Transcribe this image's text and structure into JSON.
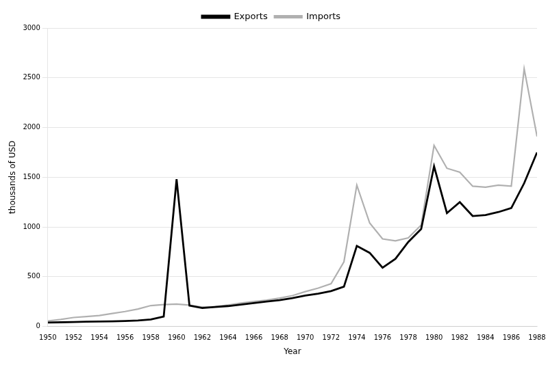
{
  "chart_data": {
    "type": "line",
    "x": [
      1950,
      1951,
      1952,
      1953,
      1954,
      1955,
      1956,
      1957,
      1958,
      1959,
      1960,
      1961,
      1962,
      1963,
      1964,
      1965,
      1966,
      1967,
      1968,
      1969,
      1970,
      1971,
      1972,
      1973,
      1974,
      1975,
      1976,
      1977,
      1978,
      1979,
      1980,
      1981,
      1982,
      1983,
      1984,
      1985,
      1986,
      1987,
      1988
    ],
    "series": [
      {
        "name": "Exports",
        "color": "#000000",
        "values": [
          40,
          42,
          45,
          48,
          50,
          52,
          55,
          60,
          70,
          100,
          1480,
          210,
          185,
          195,
          205,
          220,
          235,
          250,
          265,
          285,
          310,
          330,
          355,
          400,
          810,
          740,
          590,
          680,
          850,
          980,
          1610,
          1140,
          1250,
          1110,
          1120,
          1150,
          1190,
          1440,
          1750
        ]
      },
      {
        "name": "Imports",
        "color": "#b0b0b0",
        "values": [
          55,
          70,
          90,
          100,
          110,
          130,
          150,
          175,
          210,
          220,
          225,
          215,
          195,
          200,
          215,
          235,
          250,
          265,
          285,
          310,
          350,
          385,
          430,
          650,
          1420,
          1040,
          880,
          860,
          890,
          1020,
          1820,
          1590,
          1550,
          1410,
          1400,
          1420,
          1410,
          2590,
          1910
        ]
      }
    ],
    "x_label": "Year",
    "y_label": "thousands of USD",
    "xlim": [
      1950,
      1988
    ],
    "xticks": [
      1950,
      1952,
      1954,
      1956,
      1958,
      1960,
      1962,
      1964,
      1966,
      1968,
      1970,
      1972,
      1974,
      1976,
      1978,
      1980,
      1982,
      1984,
      1986,
      1988
    ],
    "ylim": [
      0,
      3000
    ],
    "yticks": [
      0,
      500,
      1000,
      1500,
      2000,
      2500,
      3000
    ],
    "grid": "y",
    "legend": "top"
  }
}
